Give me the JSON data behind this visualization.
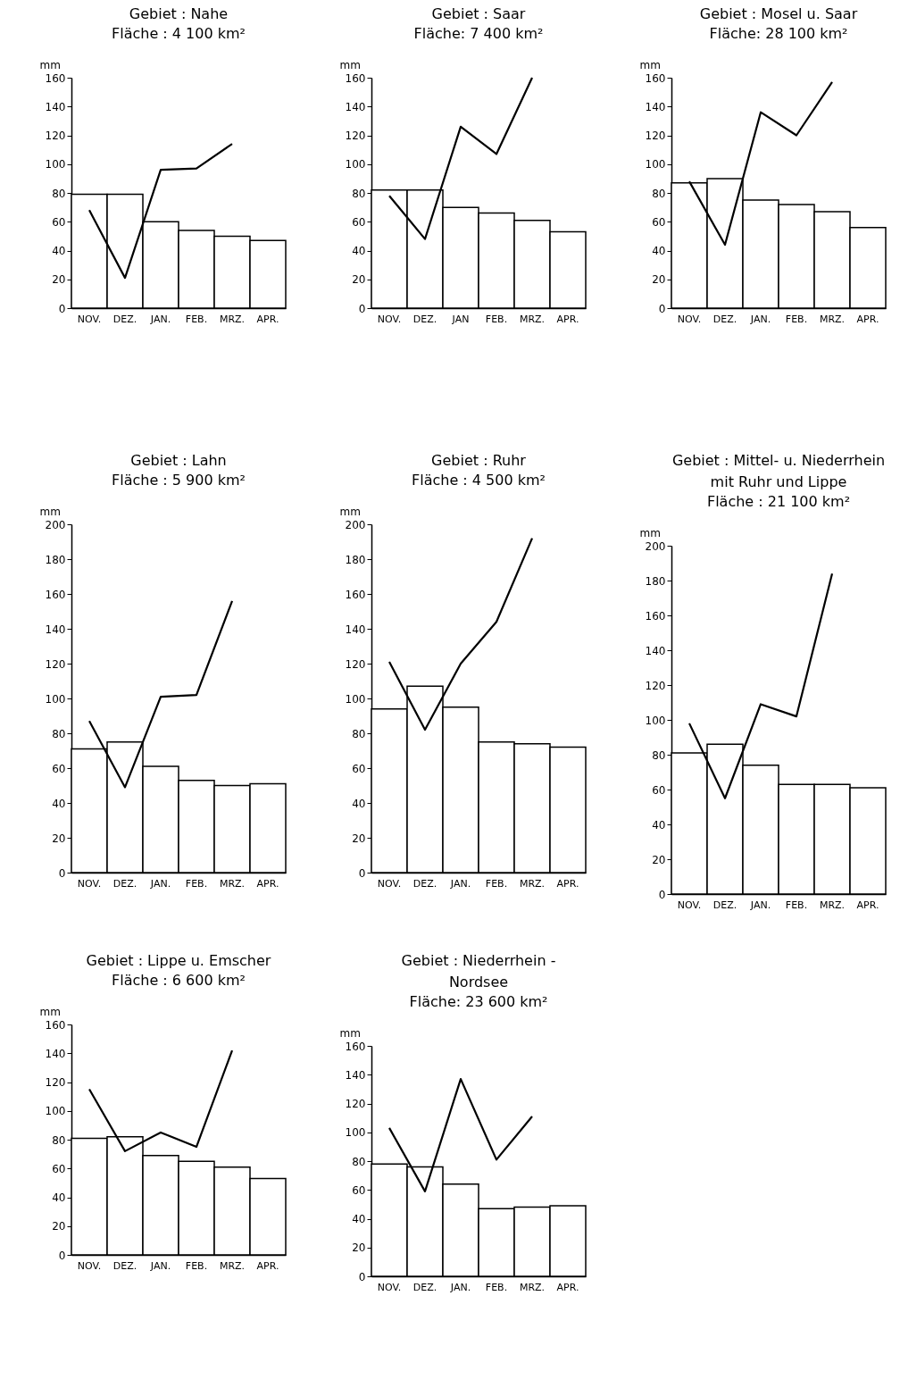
{
  "chart_data": [
    {
      "type": "bar",
      "title": "Gebiet :  Nahe",
      "subtitle": "Fläche :  4 100 km²",
      "ylabel": "mm",
      "categories": [
        "NOV.",
        "DEZ.",
        "JAN.",
        "FEB.",
        "MRZ.",
        "APR."
      ],
      "ylim": [
        0,
        160
      ],
      "yticks": [
        0,
        20,
        40,
        60,
        80,
        100,
        120,
        140,
        160
      ],
      "series": [
        {
          "type": "bar",
          "color": "#ffffff",
          "values": [
            79,
            79,
            60,
            54,
            50,
            47
          ]
        },
        {
          "type": "line",
          "color": "#000000",
          "values": [
            68,
            21,
            96,
            97,
            114,
            null
          ]
        }
      ]
    },
    {
      "type": "bar",
      "title": "Gebiet :  Saar",
      "subtitle": "Fläche: 7 400 km²",
      "ylabel": "mm",
      "categories": [
        "NOV.",
        "DEZ.",
        "JAN",
        "FEB.",
        "MRZ.",
        "APR."
      ],
      "ylim": [
        0,
        160
      ],
      "yticks": [
        0,
        20,
        40,
        60,
        80,
        100,
        120,
        140,
        160
      ],
      "series": [
        {
          "type": "bar",
          "color": "#ffffff",
          "values": [
            82,
            82,
            70,
            66,
            61,
            53
          ]
        },
        {
          "type": "line",
          "color": "#000000",
          "values": [
            78,
            48,
            126,
            107,
            160,
            null
          ]
        }
      ]
    },
    {
      "type": "bar",
      "title": "Gebiet : Mosel u. Saar",
      "subtitle": "Fläche:  28 100 km²",
      "ylabel": "mm",
      "categories": [
        "NOV.",
        "DEZ.",
        "JAN.",
        "FEB.",
        "MRZ.",
        "APR."
      ],
      "ylim": [
        0,
        160
      ],
      "yticks": [
        0,
        20,
        40,
        60,
        80,
        100,
        120,
        140,
        160
      ],
      "series": [
        {
          "type": "bar",
          "color": "#ffffff",
          "values": [
            87,
            90,
            75,
            72,
            67,
            56
          ]
        },
        {
          "type": "line",
          "color": "#000000",
          "values": [
            88,
            44,
            136,
            120,
            157,
            null
          ]
        }
      ]
    },
    {
      "type": "bar",
      "title": "Gebiet :  Lahn",
      "subtitle": "Fläche :  5 900 km²",
      "ylabel": "mm",
      "categories": [
        "NOV.",
        "DEZ.",
        "JAN.",
        "FEB.",
        "MRZ.",
        "APR."
      ],
      "ylim": [
        0,
        200
      ],
      "yticks": [
        0,
        20,
        40,
        60,
        80,
        100,
        120,
        140,
        160,
        180,
        200
      ],
      "series": [
        {
          "type": "bar",
          "color": "#ffffff",
          "values": [
            71,
            75,
            61,
            53,
            50,
            51
          ]
        },
        {
          "type": "line",
          "color": "#000000",
          "values": [
            87,
            49,
            101,
            102,
            156,
            null
          ]
        }
      ]
    },
    {
      "type": "bar",
      "title": "Gebiet :  Ruhr",
      "subtitle": "Fläche : 4 500 km²",
      "ylabel": "mm",
      "categories": [
        "NOV.",
        "DEZ.",
        "JAN.",
        "FEB.",
        "MRZ.",
        "APR."
      ],
      "ylim": [
        0,
        200
      ],
      "yticks": [
        0,
        20,
        40,
        60,
        80,
        100,
        120,
        140,
        160,
        180,
        200
      ],
      "series": [
        {
          "type": "bar",
          "color": "#ffffff",
          "values": [
            94,
            107,
            95,
            75,
            74,
            72
          ]
        },
        {
          "type": "line",
          "color": "#000000",
          "values": [
            121,
            82,
            120,
            144,
            192,
            null
          ]
        }
      ]
    },
    {
      "type": "bar",
      "title": "Gebiet : Mittel- u. Niederrhein\nmit Ruhr und Lippe",
      "subtitle": "Fläche :  21 100 km²",
      "ylabel": "mm",
      "categories": [
        "NOV.",
        "DEZ.",
        "JAN.",
        "FEB.",
        "MRZ.",
        "APR."
      ],
      "ylim": [
        0,
        200
      ],
      "yticks": [
        0,
        20,
        40,
        60,
        80,
        100,
        120,
        140,
        160,
        180,
        200
      ],
      "series": [
        {
          "type": "bar",
          "color": "#ffffff",
          "values": [
            81,
            86,
            74,
            63,
            63,
            61
          ]
        },
        {
          "type": "line",
          "color": "#000000",
          "values": [
            98,
            55,
            109,
            102,
            184,
            null
          ]
        }
      ]
    },
    {
      "type": "bar",
      "title": "Gebiet : Lippe u. Emscher",
      "subtitle": "Fläche :  6 600 km²",
      "ylabel": "mm",
      "categories": [
        "NOV.",
        "DEZ.",
        "JAN.",
        "FEB.",
        "MRZ.",
        "APR."
      ],
      "ylim": [
        0,
        160
      ],
      "yticks": [
        0,
        20,
        40,
        60,
        80,
        100,
        120,
        140,
        160
      ],
      "series": [
        {
          "type": "bar",
          "color": "#ffffff",
          "values": [
            81,
            82,
            69,
            65,
            61,
            53
          ]
        },
        {
          "type": "line",
          "color": "#000000",
          "values": [
            115,
            72,
            85,
            75,
            142,
            null
          ]
        }
      ]
    },
    {
      "type": "bar",
      "title": "Gebiet :  Niederrhein -\nNordsee",
      "subtitle": "Fläche:  23 600 km²",
      "ylabel": "mm",
      "categories": [
        "NOV.",
        "DEZ.",
        "JAN.",
        "FEB.",
        "MRZ.",
        "APR."
      ],
      "ylim": [
        0,
        160
      ],
      "yticks": [
        0,
        20,
        40,
        60,
        80,
        100,
        120,
        140,
        160
      ],
      "series": [
        {
          "type": "bar",
          "color": "#ffffff",
          "values": [
            78,
            76,
            64,
            47,
            48,
            49
          ]
        },
        {
          "type": "line",
          "color": "#000000",
          "values": [
            103,
            59,
            137,
            81,
            111,
            null
          ]
        }
      ]
    }
  ]
}
